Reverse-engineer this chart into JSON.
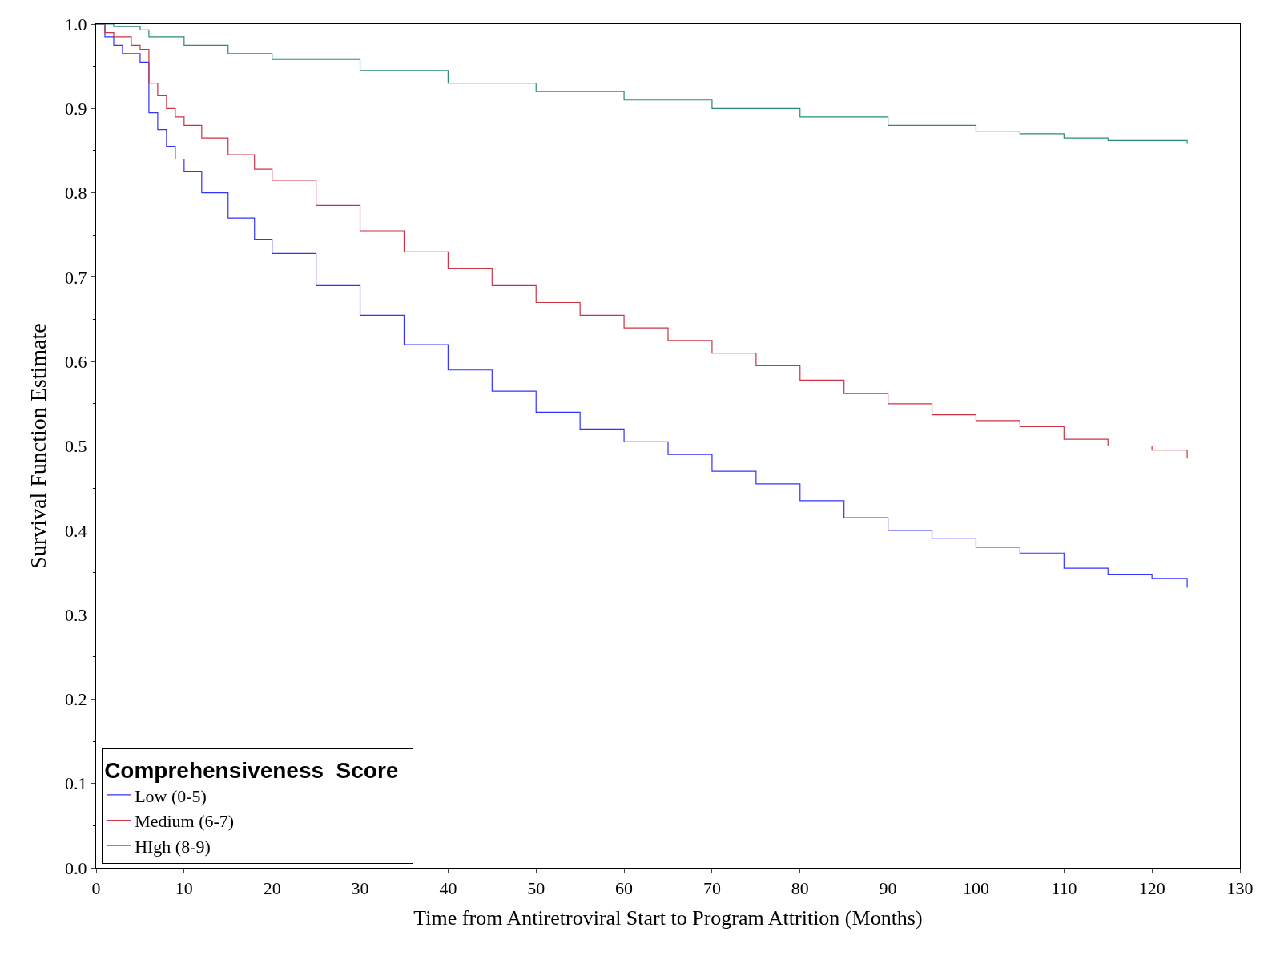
{
  "chart_data": {
    "type": "step",
    "xlabel": "Time from Antiretroviral Start to Program Attrition (Months)",
    "ylabel": "Survival Function Estimate",
    "legend_title": "Comprehensiveness  Score",
    "legend": "bottom left",
    "marker": "none",
    "line_style": "solid",
    "xlim": [
      0,
      130
    ],
    "xticks": [
      0,
      10,
      20,
      30,
      40,
      50,
      60,
      70,
      80,
      90,
      100,
      110,
      120,
      130
    ],
    "ylim": [
      0,
      1
    ],
    "yticks": [
      {
        "value": 0,
        "label": "0.0"
      },
      0.1,
      0.2,
      0.3,
      0.4,
      0.5,
      0.6,
      0.7,
      0.8,
      0.9,
      {
        "value": 1,
        "label": "1.0"
      }
    ],
    "series": [
      {
        "name": "Low (0-5)",
        "color": "#3333ff",
        "x": [
          0,
          1,
          2,
          3,
          5,
          6,
          7,
          8,
          9,
          10,
          12,
          15,
          18,
          20,
          25,
          30,
          35,
          40,
          45,
          50,
          55,
          60,
          65,
          70,
          75,
          80,
          85,
          90,
          95,
          100,
          105,
          110,
          115,
          120,
          124
        ],
        "values": [
          1.0,
          0.985,
          0.975,
          0.965,
          0.955,
          0.895,
          0.875,
          0.855,
          0.84,
          0.825,
          0.8,
          0.77,
          0.745,
          0.728,
          0.69,
          0.655,
          0.62,
          0.59,
          0.565,
          0.54,
          0.52,
          0.505,
          0.49,
          0.47,
          0.455,
          0.435,
          0.415,
          0.4,
          0.39,
          0.38,
          0.373,
          0.355,
          0.348,
          0.343,
          0.332
        ]
      },
      {
        "name": "Medium (6-7)",
        "color": "#cc3344",
        "x": [
          0,
          1,
          2,
          4,
          5,
          6,
          7,
          8,
          9,
          10,
          12,
          15,
          18,
          20,
          25,
          30,
          35,
          40,
          45,
          50,
          55,
          60,
          65,
          70,
          75,
          80,
          85,
          90,
          95,
          100,
          105,
          110,
          115,
          120,
          124
        ],
        "values": [
          1.0,
          0.99,
          0.985,
          0.975,
          0.97,
          0.93,
          0.915,
          0.9,
          0.89,
          0.88,
          0.865,
          0.845,
          0.828,
          0.815,
          0.785,
          0.755,
          0.73,
          0.71,
          0.69,
          0.67,
          0.655,
          0.64,
          0.625,
          0.61,
          0.595,
          0.578,
          0.562,
          0.55,
          0.537,
          0.53,
          0.523,
          0.508,
          0.5,
          0.495,
          0.485
        ]
      },
      {
        "name": "HIgh (8-9)",
        "color": "#2a8a7a",
        "x": [
          0,
          2,
          5,
          6,
          10,
          15,
          20,
          30,
          40,
          50,
          60,
          70,
          80,
          90,
          100,
          105,
          110,
          115,
          124
        ],
        "values": [
          1.0,
          0.997,
          0.993,
          0.985,
          0.975,
          0.965,
          0.958,
          0.945,
          0.93,
          0.92,
          0.91,
          0.9,
          0.89,
          0.88,
          0.873,
          0.87,
          0.865,
          0.862,
          0.858
        ]
      }
    ]
  }
}
